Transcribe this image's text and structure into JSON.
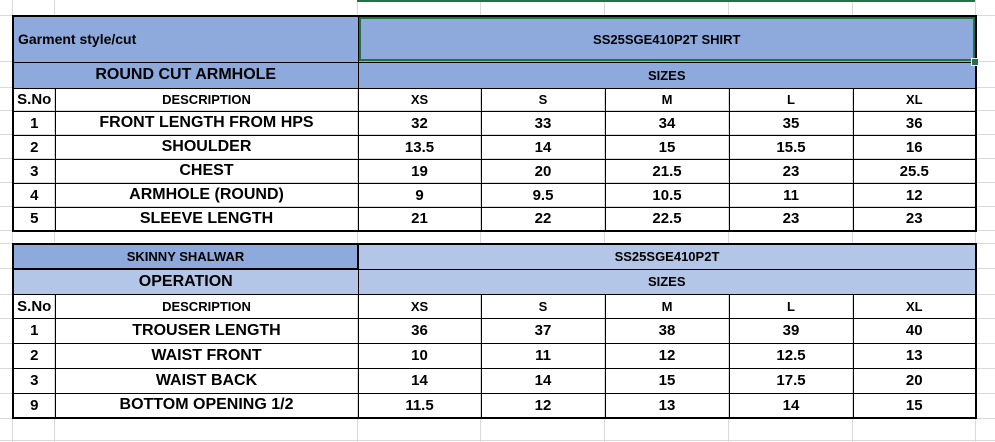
{
  "colors": {
    "header_dark": "#8ea9db",
    "header_light": "#b4c6e7",
    "selection": "#217346"
  },
  "table1": {
    "style_label": "Garment style/cut",
    "style_value": "SS25SGE410P2T SHIRT",
    "section": "ROUND CUT ARMHOLE",
    "sizes_label": "SIZES",
    "headers": [
      "S.No",
      "DESCRIPTION",
      "XS",
      "S",
      "M",
      "L",
      "XL"
    ],
    "rows": [
      [
        "1",
        "FRONT LENGTH FROM HPS",
        "32",
        "33",
        "34",
        "35",
        "36"
      ],
      [
        "2",
        "SHOULDER",
        "13.5",
        "14",
        "15",
        "15.5",
        "16"
      ],
      [
        "3",
        "CHEST",
        "19",
        "20",
        "21.5",
        "23",
        "25.5"
      ],
      [
        "4",
        "ARMHOLE (ROUND)",
        "9",
        "9.5",
        "10.5",
        "11",
        "12"
      ],
      [
        "5",
        "SLEEVE LENGTH",
        "21",
        "22",
        "22.5",
        "23",
        "23"
      ]
    ]
  },
  "table2": {
    "title": "SKINNY SHALWAR",
    "style_value": "SS25SGE410P2T",
    "section": "OPERATION",
    "sizes_label": "SIZES",
    "headers": [
      "S.No",
      "DESCRIPTION",
      "XS",
      "S",
      "M",
      "L",
      "XL"
    ],
    "rows": [
      [
        "1",
        "TROUSER  LENGTH",
        "36",
        "37",
        "38",
        "39",
        "40"
      ],
      [
        "2",
        "WAIST FRONT",
        "10",
        "11",
        "12",
        "12.5",
        "13"
      ],
      [
        "3",
        "WAIST BACK",
        "14",
        "14",
        "15",
        "17.5",
        "20"
      ],
      [
        "9",
        "BOTTOM OPENING 1/2",
        "11.5",
        "12",
        "13",
        "14",
        "15"
      ]
    ]
  }
}
